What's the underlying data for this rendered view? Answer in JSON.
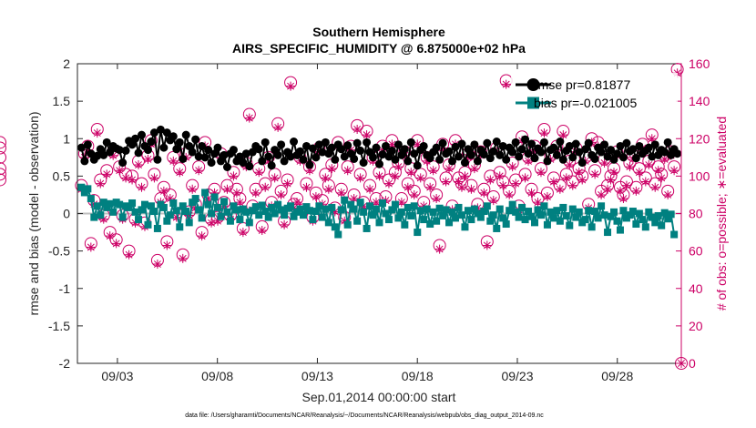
{
  "chart_data": {
    "type": "line",
    "title": "Southern Hemisphere",
    "subtitle": "AIRS_SPECIFIC_HUMIDITY @ 6.875000e+02 hPa",
    "xlabel": "Sep.01,2014 00:00:00 start",
    "ylabel": "rmse and bias (model - observation)",
    "ylabel_right": "# of obs: o=possible; ∗=evaluated",
    "footer": "data file: /Users/gharamti/Documents/NCAR/Reanalysis/~/Documents/NCAR/Reanalysis/webpub/obs_diag_output_2014-09.nc",
    "xlim": [
      1.0,
      31.2
    ],
    "ylim": [
      -2,
      2
    ],
    "ylim_right": [
      0,
      160
    ],
    "x_ticks": [
      3,
      8,
      13,
      18,
      23,
      28
    ],
    "x_tick_labels": [
      "09/03",
      "09/08",
      "09/13",
      "09/18",
      "09/23",
      "09/28"
    ],
    "y_ticks": [
      -2,
      -1.5,
      -1,
      -0.5,
      0,
      0.5,
      1,
      1.5,
      2
    ],
    "y_tick_labels": [
      "-2",
      "-1.5",
      "-1",
      "-0.5",
      "0",
      "0.5",
      "1",
      "1.5",
      "2"
    ],
    "y_ticks_right": [
      0,
      20,
      40,
      60,
      80,
      100,
      120,
      140,
      160
    ],
    "y_tick_labels_right": [
      "0",
      "20",
      "40",
      "60",
      "80",
      "100",
      "120",
      "140",
      "160"
    ],
    "legend": [
      "rmse pr=0.81877",
      "bias pr=-0.021005"
    ],
    "colors": {
      "rmse": "#000000",
      "bias": "#008080",
      "obs": "#cc0066",
      "zero": "#bfbfbf"
    },
    "series": [
      {
        "name": "rmse pr=0.81877",
        "axis": "left",
        "values": [
          0.88,
          0.7,
          0.92,
          0.8,
          0.72,
          0.77,
          0.86,
          0.78,
          0.95,
          0.82,
          0.9,
          0.87,
          0.85,
          0.68,
          0.84,
          0.97,
          0.92,
          1.0,
          0.81,
          1.05,
          0.9,
          0.85,
          0.96,
          1.08,
          0.72,
          1.12,
          0.88,
          1.08,
          0.98,
          1.03,
          0.86,
          0.95,
          0.73,
          1.05,
          0.9,
          0.82,
          0.99,
          0.76,
          0.9,
          0.75,
          0.85,
          0.68,
          0.8,
          0.88,
          0.7,
          0.78,
          0.62,
          0.8,
          0.85,
          0.7,
          0.76,
          0.68,
          0.8,
          0.63,
          0.82,
          0.9,
          0.86,
          0.7,
          0.95,
          0.76,
          0.64,
          0.85,
          0.78,
          0.92,
          0.7,
          0.82,
          0.76,
          0.96,
          0.78,
          0.83,
          0.72,
          0.9,
          0.65,
          0.87,
          0.75,
          0.92,
          0.82,
          0.95,
          0.8,
          0.88,
          0.72,
          0.92,
          0.86,
          0.76,
          0.91,
          0.8,
          0.73,
          0.94,
          0.84,
          0.68,
          0.95,
          0.82,
          0.75,
          0.88,
          0.66,
          0.79,
          0.9,
          0.76,
          0.84,
          0.72,
          0.92,
          0.78,
          0.86,
          0.7,
          0.95,
          0.8,
          0.64,
          0.85,
          0.9,
          0.78,
          0.74,
          0.82,
          0.88,
          0.72,
          0.94,
          0.8,
          0.83,
          0.7,
          0.89,
          0.76,
          0.93,
          0.68,
          0.86,
          0.78,
          0.92,
          0.7,
          0.85,
          0.79,
          0.94,
          0.74,
          0.83,
          0.96,
          0.78,
          0.9,
          0.72,
          0.88,
          0.82,
          0.95,
          0.76,
          0.86,
          0.99,
          0.8,
          0.93,
          0.74,
          0.87,
          0.82,
          0.95,
          0.7,
          0.85,
          0.88,
          0.78,
          0.96,
          0.72,
          0.84,
          0.9,
          0.75,
          0.93,
          0.82,
          0.68,
          0.86,
          0.94,
          0.78,
          0.73,
          0.88,
          0.82,
          0.92,
          0.76,
          0.85,
          0.72,
          0.8,
          0.9,
          0.75,
          0.94,
          0.83,
          0.86,
          0.74,
          0.9,
          0.8,
          0.84,
          0.88,
          0.76,
          0.92,
          0.78,
          0.85,
          0.82,
          0.95,
          0.78,
          0.86,
          0.8
        ]
      },
      {
        "name": "bias pr=-0.021005",
        "axis": "left",
        "values": [
          0.35,
          0.28,
          0.33,
          0.2,
          -0.05,
          0.1,
          -0.02,
          0.15,
          0.08,
          0.13,
          0.02,
          0.15,
          0.12,
          -0.05,
          0.1,
          0.08,
          0.14,
          0.02,
          -0.08,
          0.05,
          0.12,
          -0.15,
          0.1,
          0.03,
          -0.2,
          0.12,
          0.08,
          -0.1,
          -0.02,
          0.14,
          0.04,
          -0.18,
          0.1,
          0.03,
          -0.12,
          0.15,
          0.2,
          0.05,
          -0.06,
          0.28,
          0.12,
          0.0,
          0.22,
          0.08,
          -0.04,
          0.16,
          0.02,
          -0.1,
          0.1,
          0.05,
          -0.08,
          0.06,
          0.02,
          -0.12,
          0.04,
          0.09,
          -0.02,
          0.11,
          0.03,
          -0.05,
          0.08,
          0.0,
          0.12,
          0.05,
          -0.02,
          0.07,
          0.1,
          -0.04,
          0.02,
          0.06,
          -0.02,
          0.09,
          0.04,
          -0.08,
          0.03,
          0.1,
          -0.05,
          0.06,
          -0.12,
          0.08,
          -0.18,
          -0.28,
          0.05,
          0.18,
          -0.15,
          0.12,
          0.06,
          -0.1,
          0.15,
          0.02,
          -0.2,
          0.1,
          -0.02,
          0.06,
          -0.12,
          0.14,
          0.0,
          -0.08,
          0.05,
          0.12,
          -0.06,
          0.02,
          -0.15,
          0.08,
          -0.03,
          0.1,
          -0.25,
          0.04,
          -0.08,
          0.06,
          -0.14,
          0.02,
          -0.1,
          0.07,
          -0.03,
          0.05,
          -0.12,
          0.02,
          -0.06,
          0.08,
          -0.02,
          -0.18,
          0.04,
          -0.08,
          0.06,
          0.0,
          -0.05,
          0.03,
          0.1,
          -0.1,
          -0.02,
          -0.2,
          0.06,
          -0.06,
          -0.14,
          0.04,
          0.12,
          0.02,
          -0.05,
          0.08,
          -0.08,
          0.03,
          -0.04,
          -0.12,
          0.05,
          -0.02,
          0.1,
          -0.15,
          0.02,
          -0.06,
          0.04,
          -0.1,
          0.08,
          -0.03,
          -0.16,
          0.06,
          -0.05,
          0.02,
          -0.12,
          -0.08,
          0.04,
          -0.18,
          0.03,
          -0.06,
          0.1,
          -0.02,
          -0.25,
          -0.04,
          0.02,
          -0.1,
          -0.22,
          0.04,
          -0.06,
          -0.02,
          0.03,
          -0.14,
          0.0,
          -0.08,
          -0.18,
          0.02,
          -0.05,
          -0.12,
          -0.03,
          -0.16,
          0.01,
          -0.07,
          -0.01,
          -0.28
        ]
      },
      {
        "name": "# of obs possible",
        "axis": "right",
        "marker": "circle",
        "values": [
          95,
          112,
          116,
          64,
          87,
          125,
          98,
          79,
          103,
          70,
          113,
          66,
          105,
          79,
          101,
          60,
          100,
          77,
          108,
          96,
          75,
          111,
          119,
          101,
          55,
          88,
          94,
          65,
          90,
          110,
          80,
          104,
          58,
          112,
          81,
          95,
          85,
          105,
          70,
          118,
          90,
          77,
          93,
          78,
          112,
          86,
          95,
          79,
          102,
          93,
          88,
          72,
          107,
          133,
          84,
          93,
          104,
          73,
          96,
          110,
          86,
          101,
          128,
          92,
          76,
          98,
          150,
          85,
          88,
          110,
          82,
          96,
          105,
          78,
          91,
          115,
          87,
          101,
          95,
          106,
          83,
          118,
          93,
          78,
          105,
          116,
          90,
          127,
          101,
          86,
          124,
          95,
          110,
          88,
          102,
          116,
          89,
          98,
          119,
          102,
          107,
          88,
          113,
          96,
          104,
          92,
          119,
          101,
          86,
          110,
          96,
          105,
          90,
          63,
          117,
          99,
          106,
          84,
          119,
          99,
          96,
          102,
          112,
          95,
          106,
          85,
          113,
          93,
          65,
          100,
          89,
          115,
          102,
          97,
          151,
          92,
          107,
          98,
          84,
          121,
          101,
          110,
          93,
          116,
          88,
          104,
          125,
          91,
          111,
          99,
          116,
          95,
          124,
          101,
          108,
          97,
          115,
          104,
          100,
          110,
          85,
          120,
          103,
          118,
          92,
          109,
          95,
          100,
          104,
          113,
          94,
          90,
          97,
          107,
          111,
          94,
          104,
          117,
          99,
          108,
          122,
          96,
          105,
          101,
          111,
          92,
          113,
          105,
          157,
          98,
          118,
          101,
          110,
          104,
          115
        ]
      },
      {
        "name": "# of obs evaluated",
        "axis": "right",
        "marker": "star",
        "values": [
          93,
          110,
          114,
          62,
          85,
          123,
          96,
          77,
          101,
          68,
          111,
          64,
          103,
          77,
          99,
          58,
          98,
          75,
          106,
          94,
          73,
          109,
          117,
          99,
          53,
          86,
          92,
          63,
          88,
          108,
          78,
          102,
          56,
          110,
          79,
          93,
          83,
          103,
          68,
          116,
          88,
          75,
          91,
          76,
          110,
          84,
          93,
          77,
          100,
          91,
          86,
          70,
          105,
          131,
          82,
          91,
          102,
          71,
          94,
          108,
          84,
          99,
          126,
          90,
          74,
          96,
          148,
          83,
          86,
          108,
          80,
          94,
          103,
          76,
          89,
          113,
          85,
          99,
          93,
          104,
          81,
          116,
          91,
          76,
          103,
          114,
          88,
          125,
          99,
          84,
          122,
          93,
          108,
          86,
          100,
          114,
          87,
          96,
          117,
          100,
          105,
          86,
          111,
          94,
          102,
          90,
          117,
          99,
          84,
          108,
          94,
          103,
          88,
          61,
          115,
          97,
          104,
          82,
          117,
          97,
          94,
          100,
          110,
          93,
          104,
          83,
          111,
          91,
          63,
          98,
          87,
          113,
          100,
          95,
          149,
          90,
          105,
          96,
          82,
          119,
          99,
          108,
          91,
          114,
          86,
          102,
          123,
          89,
          109,
          97,
          114,
          93,
          122,
          99,
          106,
          95,
          113,
          102,
          98,
          108,
          83,
          118,
          101,
          116,
          90,
          107,
          93,
          98,
          102,
          111,
          92,
          88,
          95,
          105,
          109,
          92,
          102,
          115,
          97,
          106,
          120,
          94,
          103,
          99,
          109,
          90,
          111,
          103,
          155,
          96,
          116,
          99,
          108,
          102,
          113
        ]
      }
    ]
  }
}
